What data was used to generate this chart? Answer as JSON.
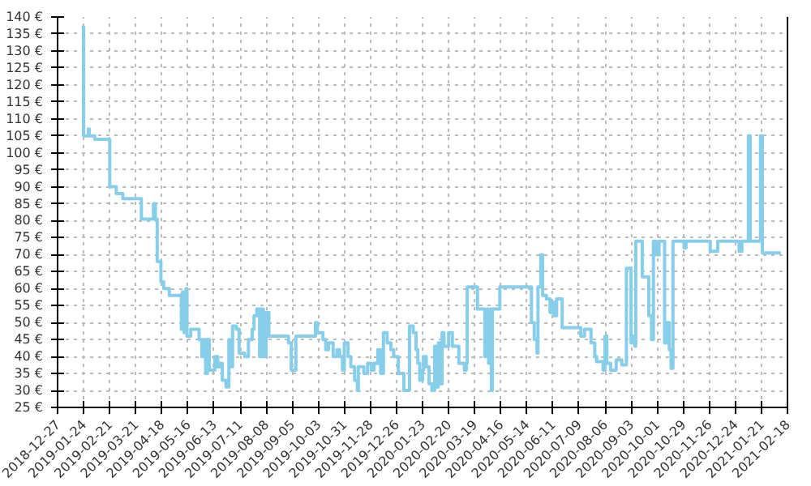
{
  "chart_data": {
    "type": "step",
    "color": "#87ceeb",
    "grid": true,
    "line_style": "solid",
    "xlim": [
      "2018-12-27",
      "2021-02-18"
    ],
    "xticks": [
      "2018-12-27",
      "2019-01-24",
      "2019-02-21",
      "2019-03-21",
      "2019-04-18",
      "2019-05-16",
      "2019-06-13",
      "2019-07-11",
      "2019-08-08",
      "2019-09-05",
      "2019-10-03",
      "2019-10-31",
      "2019-11-28",
      "2019-12-26",
      "2020-01-23",
      "2020-02-20",
      "2020-03-19",
      "2020-04-16",
      "2020-05-14",
      "2020-06-11",
      "2020-07-09",
      "2020-08-06",
      "2020-09-03",
      "2020-10-01",
      "2020-10-29",
      "2020-11-26",
      "2020-12-24",
      "2021-01-21",
      "2021-02-18"
    ],
    "ylim": [
      25,
      140
    ],
    "yticks": [
      {
        "value": 25,
        "label": "25 €"
      },
      {
        "value": 30,
        "label": "30 €"
      },
      {
        "value": 35,
        "label": "35 €"
      },
      {
        "value": 40,
        "label": "40 €"
      },
      {
        "value": 45,
        "label": "45 €"
      },
      {
        "value": 50,
        "label": "50 €"
      },
      {
        "value": 55,
        "label": "55 €"
      },
      {
        "value": 60,
        "label": "60 €"
      },
      {
        "value": 65,
        "label": "65 €"
      },
      {
        "value": 70,
        "label": "70 €"
      },
      {
        "value": 75,
        "label": "75 €"
      },
      {
        "value": 80,
        "label": "80 €"
      },
      {
        "value": 85,
        "label": "85 €"
      },
      {
        "value": 90,
        "label": "90 €"
      },
      {
        "value": 95,
        "label": "95 €"
      },
      {
        "value": 100,
        "label": "100 €"
      },
      {
        "value": 105,
        "label": "105 €"
      },
      {
        "value": 110,
        "label": "110 €"
      },
      {
        "value": 115,
        "label": "115 €"
      },
      {
        "value": 120,
        "label": "120 €"
      },
      {
        "value": 125,
        "label": "125 €"
      },
      {
        "value": 130,
        "label": "130 €"
      },
      {
        "value": 135,
        "label": "135 €"
      },
      {
        "value": 140,
        "label": "140 €"
      }
    ],
    "x": [
      "2019-01-22",
      "2019-01-24",
      "2019-01-29",
      "2019-01-30",
      "2019-02-05",
      "2019-02-21",
      "2019-02-28",
      "2019-03-07",
      "2019-03-27",
      "2019-04-09",
      "2019-04-11",
      "2019-04-13",
      "2019-04-17",
      "2019-04-20",
      "2019-04-26",
      "2019-05-09",
      "2019-05-10",
      "2019-05-12",
      "2019-05-14",
      "2019-05-15",
      "2019-05-19",
      "2019-05-28",
      "2019-05-31",
      "2019-06-02",
      "2019-06-04",
      "2019-06-06",
      "2019-06-08",
      "2019-06-14",
      "2019-06-17",
      "2019-06-19",
      "2019-06-22",
      "2019-06-26",
      "2019-06-29",
      "2019-06-30",
      "2019-07-03",
      "2019-07-07",
      "2019-07-10",
      "2019-07-16",
      "2019-07-20",
      "2019-07-24",
      "2019-07-26",
      "2019-07-29",
      "2019-08-01",
      "2019-08-03",
      "2019-08-05",
      "2019-08-08",
      "2019-08-11",
      "2019-09-01",
      "2019-09-04",
      "2019-09-09",
      "2019-09-30",
      "2019-10-02",
      "2019-10-08",
      "2019-10-11",
      "2019-10-14",
      "2019-10-19",
      "2019-10-23",
      "2019-10-26",
      "2019-10-29",
      "2019-10-31",
      "2019-11-04",
      "2019-11-07",
      "2019-11-11",
      "2019-11-14",
      "2019-11-15",
      "2019-11-21",
      "2019-11-25",
      "2019-11-29",
      "2019-12-02",
      "2019-12-06",
      "2019-12-09",
      "2019-12-12",
      "2019-12-16",
      "2019-12-20",
      "2019-12-23",
      "2019-12-28",
      "2020-01-03",
      "2020-01-09",
      "2020-01-13",
      "2020-01-16",
      "2020-01-18",
      "2020-01-20",
      "2020-01-23",
      "2020-01-24",
      "2020-01-27",
      "2020-01-30",
      "2020-02-02",
      "2020-02-05",
      "2020-02-06",
      "2020-02-09",
      "2020-02-11",
      "2020-02-13",
      "2020-02-15",
      "2020-02-20",
      "2020-02-24",
      "2020-03-02",
      "2020-03-08",
      "2020-03-10",
      "2020-03-11",
      "2020-03-22",
      "2020-03-30",
      "2020-04-02",
      "2020-04-03",
      "2020-04-05",
      "2020-04-06",
      "2020-04-07",
      "2020-04-15",
      "2020-05-19",
      "2020-05-22",
      "2020-05-25",
      "2020-05-26",
      "2020-05-29",
      "2020-05-31",
      "2020-06-04",
      "2020-06-08",
      "2020-06-10",
      "2020-06-12",
      "2020-06-15",
      "2020-06-21",
      "2020-07-11",
      "2020-07-15",
      "2020-07-22",
      "2020-07-26",
      "2020-07-28",
      "2020-08-04",
      "2020-08-06",
      "2020-08-08",
      "2020-08-12",
      "2020-08-18",
      "2020-08-24",
      "2020-08-29",
      "2020-09-03",
      "2020-09-04",
      "2020-09-07",
      "2020-09-08",
      "2020-09-15",
      "2020-09-22",
      "2020-09-25",
      "2020-09-27",
      "2020-09-30",
      "2020-10-03",
      "2020-10-09",
      "2020-10-12",
      "2020-10-14",
      "2020-10-16",
      "2020-10-18",
      "2020-10-30",
      "2020-11-01",
      "2020-11-27",
      "2020-12-05",
      "2020-12-28",
      "2020-12-31",
      "2021-01-07",
      "2021-01-09",
      "2021-01-20",
      "2021-01-22",
      "2021-02-11"
    ],
    "values": [
      137,
      105,
      107,
      105,
      104,
      90,
      88,
      86.5,
      80.5,
      85,
      80.5,
      68,
      62,
      60,
      58,
      48,
      59,
      47,
      60,
      46,
      48,
      45,
      40,
      45,
      35,
      45,
      36,
      40,
      37,
      38,
      33,
      31,
      45,
      37,
      49,
      48,
      41,
      40,
      45,
      48,
      52,
      54,
      40,
      54,
      40,
      53,
      46,
      44,
      36,
      46,
      50,
      47,
      45,
      42,
      44,
      40,
      42,
      40,
      36,
      44,
      40,
      37,
      33,
      30,
      37,
      35,
      38,
      36,
      38,
      42,
      35,
      47,
      44,
      42,
      40,
      35,
      30,
      49,
      47,
      42,
      38,
      33,
      36,
      40,
      37,
      32,
      30,
      43,
      31,
      44,
      32,
      47,
      43,
      47,
      43,
      38,
      36,
      38,
      60.5,
      54,
      40,
      54,
      38,
      54,
      30,
      54,
      60.5,
      50,
      45,
      41,
      60.5,
      70,
      58,
      57,
      53,
      56,
      52,
      57,
      48.5,
      46,
      48,
      44,
      40,
      38.5,
      36,
      46,
      38,
      36,
      39,
      37.5,
      66,
      44,
      46,
      43,
      74,
      63.5,
      52,
      45,
      74,
      70,
      74,
      44,
      50,
      42,
      36.5,
      74,
      72,
      74,
      71,
      74,
      71,
      74,
      105,
      74,
      105,
      70.5,
      70.5
    ]
  }
}
